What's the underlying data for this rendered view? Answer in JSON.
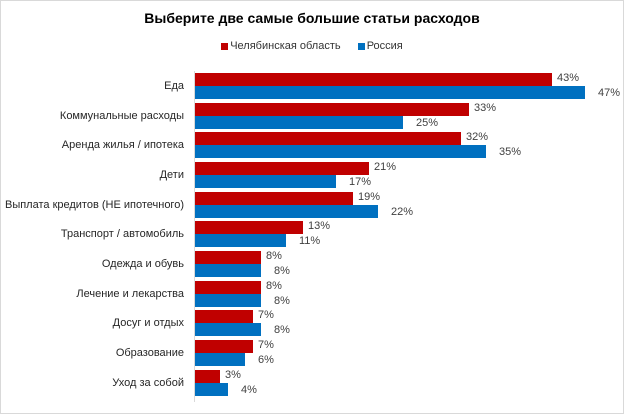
{
  "chart_data": {
    "type": "bar",
    "orientation": "horizontal",
    "title": "Выберите две самые большие статьи расходов",
    "xlabel": "",
    "ylabel": "",
    "legend_position": "top",
    "grid": false,
    "categories": [
      "Еда",
      "Коммунальные расходы",
      "Аренда жилья / ипотека",
      "Дети",
      "Выплата кредитов (НЕ ипотечного)",
      "Транспорт / автомобиль",
      "Одежда и обувь",
      "Лечение и лекарства",
      "Досуг и отдых",
      "Образование",
      "Уход за собой"
    ],
    "series": [
      {
        "name": "Челябинская область",
        "color": "#c00000",
        "values": [
          43,
          33,
          32,
          21,
          19,
          13,
          8,
          8,
          7,
          7,
          3
        ]
      },
      {
        "name": "Россия",
        "color": "#0070c0",
        "values": [
          47,
          25,
          35,
          17,
          22,
          11,
          8,
          8,
          8,
          6,
          4
        ]
      }
    ],
    "value_format": "{v}%",
    "xlim": [
      0,
      50
    ]
  },
  "title": "Выберите две самые большие статьи расходов",
  "legend": [
    {
      "label": "Челябинская область",
      "color": "#c00000"
    },
    {
      "label": "Россия",
      "color": "#0070c0"
    }
  ]
}
